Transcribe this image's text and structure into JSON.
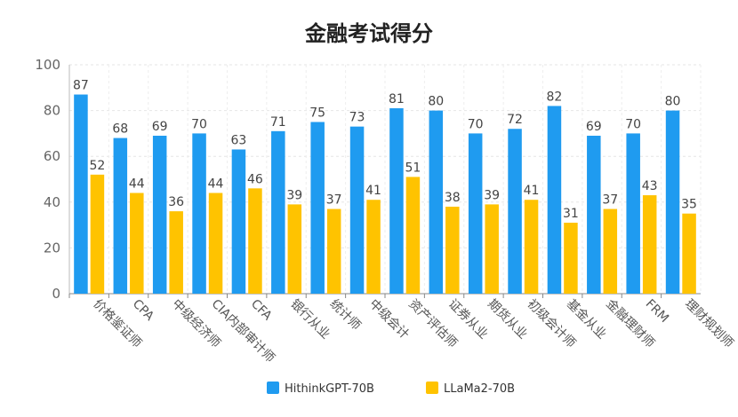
{
  "chart_data": {
    "type": "bar",
    "title": "金融考试得分",
    "categories": [
      "价格鉴证师",
      "CPA",
      "中级经济师",
      "CIA内部审计师",
      "CFA",
      "银行从业",
      "统计师",
      "中级会计",
      "资产评估师",
      "证券从业",
      "期货从业",
      "初级会计师",
      "基金从业",
      "金融理财师",
      "FRM",
      "理财规划师"
    ],
    "series": [
      {
        "name": "HithinkGPT-70B",
        "color": "#1f9bf0",
        "values": [
          87,
          68,
          69,
          70,
          63,
          71,
          75,
          73,
          81,
          80,
          70,
          72,
          82,
          69,
          70,
          80
        ]
      },
      {
        "name": "LLaMa2-70B",
        "color": "#ffc300",
        "values": [
          52,
          44,
          36,
          44,
          46,
          39,
          37,
          41,
          51,
          38,
          39,
          41,
          31,
          37,
          43,
          35
        ]
      }
    ],
    "ylim": [
      0,
      100
    ],
    "yticks": [
      0,
      20,
      40,
      60,
      80,
      100
    ],
    "grid": true,
    "legend_position": "bottom-center"
  }
}
